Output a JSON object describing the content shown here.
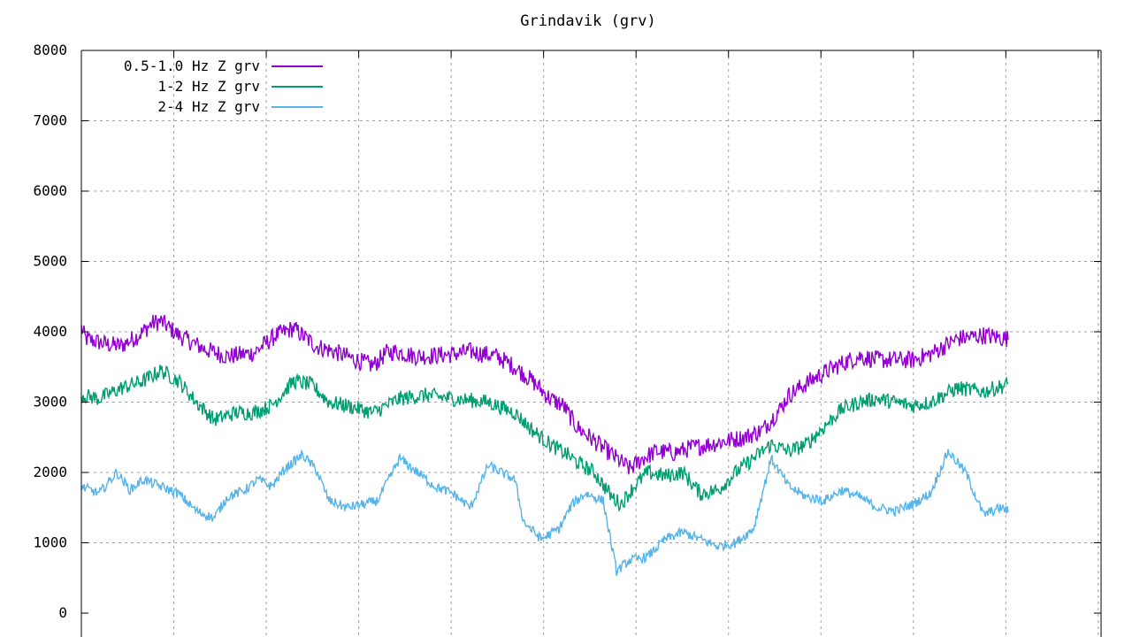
{
  "chart_data": {
    "type": "line",
    "title": "Grindavik (grv)",
    "xlabel": "",
    "ylabel": "",
    "ylim": [
      0,
      8000
    ],
    "yticks": [
      0,
      1000,
      2000,
      3000,
      4000,
      5000,
      6000,
      7000,
      8000
    ],
    "xgrid_count": 11,
    "grid": true,
    "legend_position": "top-left",
    "series": [
      {
        "name": "0.5-1.0 Hz Z grv",
        "color": "#9400d3",
        "noise": 130,
        "points": [
          [
            0,
            4050
          ],
          [
            5,
            3900
          ],
          [
            30,
            3820
          ],
          [
            45,
            3800
          ],
          [
            65,
            3950
          ],
          [
            80,
            4120
          ],
          [
            90,
            4150
          ],
          [
            110,
            3950
          ],
          [
            140,
            3750
          ],
          [
            165,
            3650
          ],
          [
            195,
            3700
          ],
          [
            220,
            3950
          ],
          [
            240,
            4050
          ],
          [
            250,
            3950
          ],
          [
            265,
            3800
          ],
          [
            290,
            3700
          ],
          [
            310,
            3600
          ],
          [
            330,
            3520
          ],
          [
            345,
            3700
          ],
          [
            355,
            3720
          ],
          [
            380,
            3650
          ],
          [
            420,
            3680
          ],
          [
            440,
            3720
          ],
          [
            470,
            3650
          ],
          [
            490,
            3500
          ],
          [
            510,
            3300
          ],
          [
            530,
            3050
          ],
          [
            545,
            2950
          ],
          [
            560,
            2650
          ],
          [
            575,
            2500
          ],
          [
            590,
            2350
          ],
          [
            605,
            2200
          ],
          [
            620,
            2050
          ],
          [
            635,
            2200
          ],
          [
            650,
            2300
          ],
          [
            670,
            2280
          ],
          [
            690,
            2350
          ],
          [
            710,
            2400
          ],
          [
            730,
            2450
          ],
          [
            750,
            2500
          ],
          [
            760,
            2550
          ],
          [
            770,
            2600
          ],
          [
            790,
            2900
          ],
          [
            800,
            3100
          ],
          [
            830,
            3350
          ],
          [
            860,
            3550
          ],
          [
            880,
            3650
          ],
          [
            900,
            3600
          ],
          [
            940,
            3600
          ],
          [
            960,
            3680
          ],
          [
            990,
            3900
          ],
          [
            1020,
            3950
          ],
          [
            1048,
            3900
          ]
        ]
      },
      {
        "name": "1-2 Hz Z grv",
        "color": "#009e73",
        "noise": 110,
        "points": [
          [
            0,
            3100
          ],
          [
            20,
            3050
          ],
          [
            45,
            3200
          ],
          [
            70,
            3300
          ],
          [
            90,
            3450
          ],
          [
            110,
            3300
          ],
          [
            130,
            3000
          ],
          [
            150,
            2750
          ],
          [
            175,
            2850
          ],
          [
            195,
            2850
          ],
          [
            215,
            2950
          ],
          [
            240,
            3300
          ],
          [
            260,
            3250
          ],
          [
            280,
            3000
          ],
          [
            300,
            2950
          ],
          [
            330,
            2850
          ],
          [
            345,
            2950
          ],
          [
            360,
            3050
          ],
          [
            390,
            3100
          ],
          [
            420,
            3050
          ],
          [
            460,
            3000
          ],
          [
            490,
            2850
          ],
          [
            510,
            2600
          ],
          [
            530,
            2400
          ],
          [
            550,
            2250
          ],
          [
            560,
            2150
          ],
          [
            580,
            2000
          ],
          [
            600,
            1650
          ],
          [
            610,
            1550
          ],
          [
            625,
            1800
          ],
          [
            640,
            2000
          ],
          [
            660,
            1950
          ],
          [
            680,
            2000
          ],
          [
            700,
            1700
          ],
          [
            720,
            1750
          ],
          [
            740,
            2000
          ],
          [
            760,
            2200
          ],
          [
            780,
            2400
          ],
          [
            800,
            2300
          ],
          [
            820,
            2400
          ],
          [
            840,
            2650
          ],
          [
            860,
            2900
          ],
          [
            880,
            3000
          ],
          [
            900,
            3050
          ],
          [
            940,
            2950
          ],
          [
            960,
            3000
          ],
          [
            990,
            3200
          ],
          [
            1020,
            3150
          ],
          [
            1048,
            3250
          ]
        ]
      },
      {
        "name": "2-4 Hz Z grv",
        "color": "#56b4e9",
        "noise": 70,
        "points": [
          [
            0,
            1800
          ],
          [
            20,
            1700
          ],
          [
            40,
            2000
          ],
          [
            55,
            1750
          ],
          [
            70,
            1900
          ],
          [
            90,
            1800
          ],
          [
            110,
            1700
          ],
          [
            130,
            1450
          ],
          [
            150,
            1350
          ],
          [
            165,
            1650
          ],
          [
            185,
            1750
          ],
          [
            200,
            1900
          ],
          [
            215,
            1800
          ],
          [
            230,
            2050
          ],
          [
            250,
            2250
          ],
          [
            265,
            2050
          ],
          [
            280,
            1600
          ],
          [
            300,
            1500
          ],
          [
            320,
            1550
          ],
          [
            335,
            1600
          ],
          [
            360,
            2200
          ],
          [
            380,
            2000
          ],
          [
            400,
            1800
          ],
          [
            420,
            1700
          ],
          [
            440,
            1500
          ],
          [
            460,
            2100
          ],
          [
            490,
            1900
          ],
          [
            500,
            1300
          ],
          [
            520,
            1050
          ],
          [
            540,
            1200
          ],
          [
            555,
            1550
          ],
          [
            570,
            1700
          ],
          [
            590,
            1600
          ],
          [
            605,
            600
          ],
          [
            620,
            750
          ],
          [
            640,
            800
          ],
          [
            660,
            1050
          ],
          [
            680,
            1150
          ],
          [
            700,
            1050
          ],
          [
            720,
            950
          ],
          [
            740,
            1000
          ],
          [
            760,
            1200
          ],
          [
            780,
            2200
          ],
          [
            800,
            1800
          ],
          [
            820,
            1650
          ],
          [
            840,
            1600
          ],
          [
            860,
            1750
          ],
          [
            880,
            1650
          ],
          [
            900,
            1500
          ],
          [
            920,
            1450
          ],
          [
            940,
            1550
          ],
          [
            960,
            1700
          ],
          [
            980,
            2300
          ],
          [
            1000,
            2000
          ],
          [
            1020,
            1400
          ],
          [
            1040,
            1500
          ],
          [
            1048,
            1450
          ]
        ]
      }
    ]
  }
}
